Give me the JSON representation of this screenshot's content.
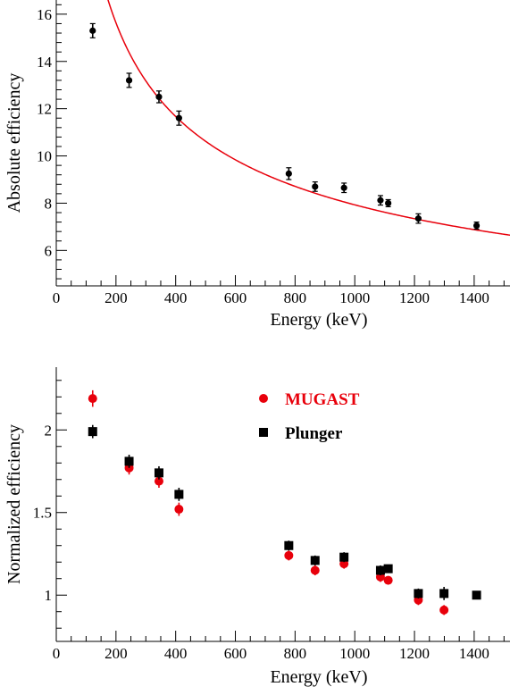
{
  "colors": {
    "red": "#e8000b",
    "black": "#000000"
  },
  "chart_data": [
    {
      "type": "scatter",
      "title": "",
      "xlabel": "Energy (keV)",
      "ylabel": "Absolute efficiency",
      "xlim": [
        0,
        1520
      ],
      "ylim": [
        4.5,
        16.6
      ],
      "xticks": [
        0,
        200,
        400,
        600,
        800,
        1000,
        1200,
        1400
      ],
      "xtick_labels": [
        "0",
        "200",
        "400",
        "600",
        "800",
        "1000",
        "1200",
        "1400"
      ],
      "yticks": [
        6,
        8,
        10,
        12,
        14,
        16
      ],
      "ytick_labels": [
        "6",
        "8",
        "10",
        "12",
        14,
        "16"
      ],
      "series": [
        {
          "color": "#000000",
          "marker": "circle",
          "x": [
            122,
            244,
            344,
            411,
            779,
            867,
            964,
            1086,
            1112,
            1213,
            1408
          ],
          "y": [
            15.3,
            13.2,
            12.5,
            11.6,
            9.25,
            8.7,
            8.65,
            8.12,
            8.0,
            7.35,
            7.05
          ],
          "err": [
            0.3,
            0.3,
            0.25,
            0.3,
            0.25,
            0.2,
            0.2,
            0.2,
            0.15,
            0.2,
            0.15
          ]
        }
      ],
      "fit": {
        "color": "#e8000b",
        "x_range": [
          80,
          1520
        ],
        "curve": "power",
        "A": 146.1,
        "p": -0.4218
      }
    },
    {
      "type": "scatter",
      "title": "",
      "xlabel": "Energy (keV)",
      "ylabel": "Normalized efficiency",
      "xlim": [
        0,
        1520
      ],
      "ylim": [
        0.72,
        2.38
      ],
      "xticks": [
        0,
        200,
        400,
        600,
        800,
        1000,
        1200,
        1400
      ],
      "xtick_labels": [
        "0",
        "200",
        "400",
        "600",
        "800",
        "1000",
        "1200",
        "1400"
      ],
      "yticks": [
        1,
        1.5,
        2
      ],
      "ytick_labels": [
        "1",
        "1.5",
        "2"
      ],
      "legend_position": "top-right",
      "series": [
        {
          "name": "MUGAST",
          "color": "#e8000b",
          "marker": "circle",
          "x": [
            122,
            244,
            344,
            411,
            779,
            867,
            964,
            1086,
            1112,
            1213,
            1299
          ],
          "y": [
            2.19,
            1.77,
            1.69,
            1.52,
            1.24,
            1.15,
            1.19,
            1.11,
            1.09,
            0.97,
            0.91
          ],
          "err": [
            0.05,
            0.04,
            0.04,
            0.04,
            0.03,
            0.03,
            0.03,
            0.03,
            0.02,
            0.03,
            0.03
          ]
        },
        {
          "name": "Plunger",
          "color": "#000000",
          "marker": "square",
          "x": [
            122,
            244,
            344,
            411,
            779,
            867,
            964,
            1086,
            1112,
            1213,
            1299,
            1408
          ],
          "y": [
            1.99,
            1.81,
            1.74,
            1.61,
            1.3,
            1.21,
            1.23,
            1.15,
            1.16,
            1.01,
            1.01,
            1.0
          ],
          "err": [
            0.04,
            0.04,
            0.04,
            0.04,
            0.03,
            0.03,
            0.03,
            0.03,
            0.02,
            0.03,
            0.04,
            0.01
          ]
        }
      ]
    }
  ]
}
